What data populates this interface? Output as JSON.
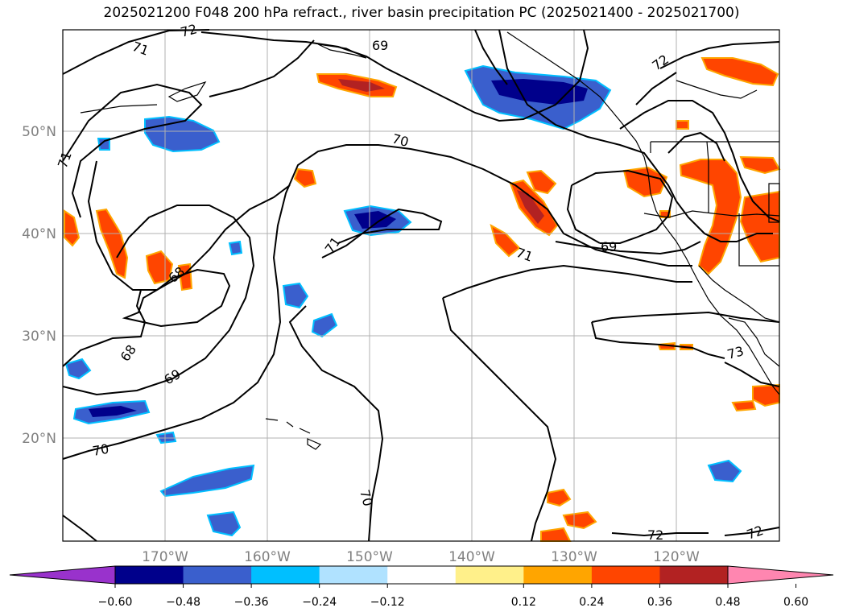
{
  "title": "2025021200 F048 200 hPa refract., river basin precipitation PC (2025021400 - 2025021700)",
  "map": {
    "longitude_labels": [
      "170°W",
      "160°W",
      "150°W",
      "140°W",
      "130°W",
      "120°W"
    ],
    "latitude_labels": [
      "50°N",
      "40°N",
      "30°N",
      "20°N"
    ],
    "contour_labels": [
      "72",
      "71",
      "69",
      "70",
      "71",
      "68",
      "68",
      "69",
      "70",
      "70",
      "71",
      "69",
      "72",
      "72",
      "73",
      "71",
      "72"
    ],
    "gridline_color": "#b0b0b0",
    "contour_color": "#000000",
    "features": [
      "refractivity contours",
      "precipitation PC shading",
      "coastlines",
      "state/province borders"
    ]
  },
  "colorbar": {
    "tick_labels": [
      "−0.60",
      "−0.48",
      "−0.36",
      "−0.24",
      "−0.12",
      "0.12",
      "0.24",
      "0.36",
      "0.48",
      "0.60"
    ],
    "colors": [
      "#9932cc",
      "#00008b",
      "#3a5fcd",
      "#00bfff",
      "#b0e2ff",
      "#ffffff",
      "#fff08a",
      "#ffa500",
      "#ff4500",
      "#b22222",
      "#ff86b0"
    ]
  }
}
